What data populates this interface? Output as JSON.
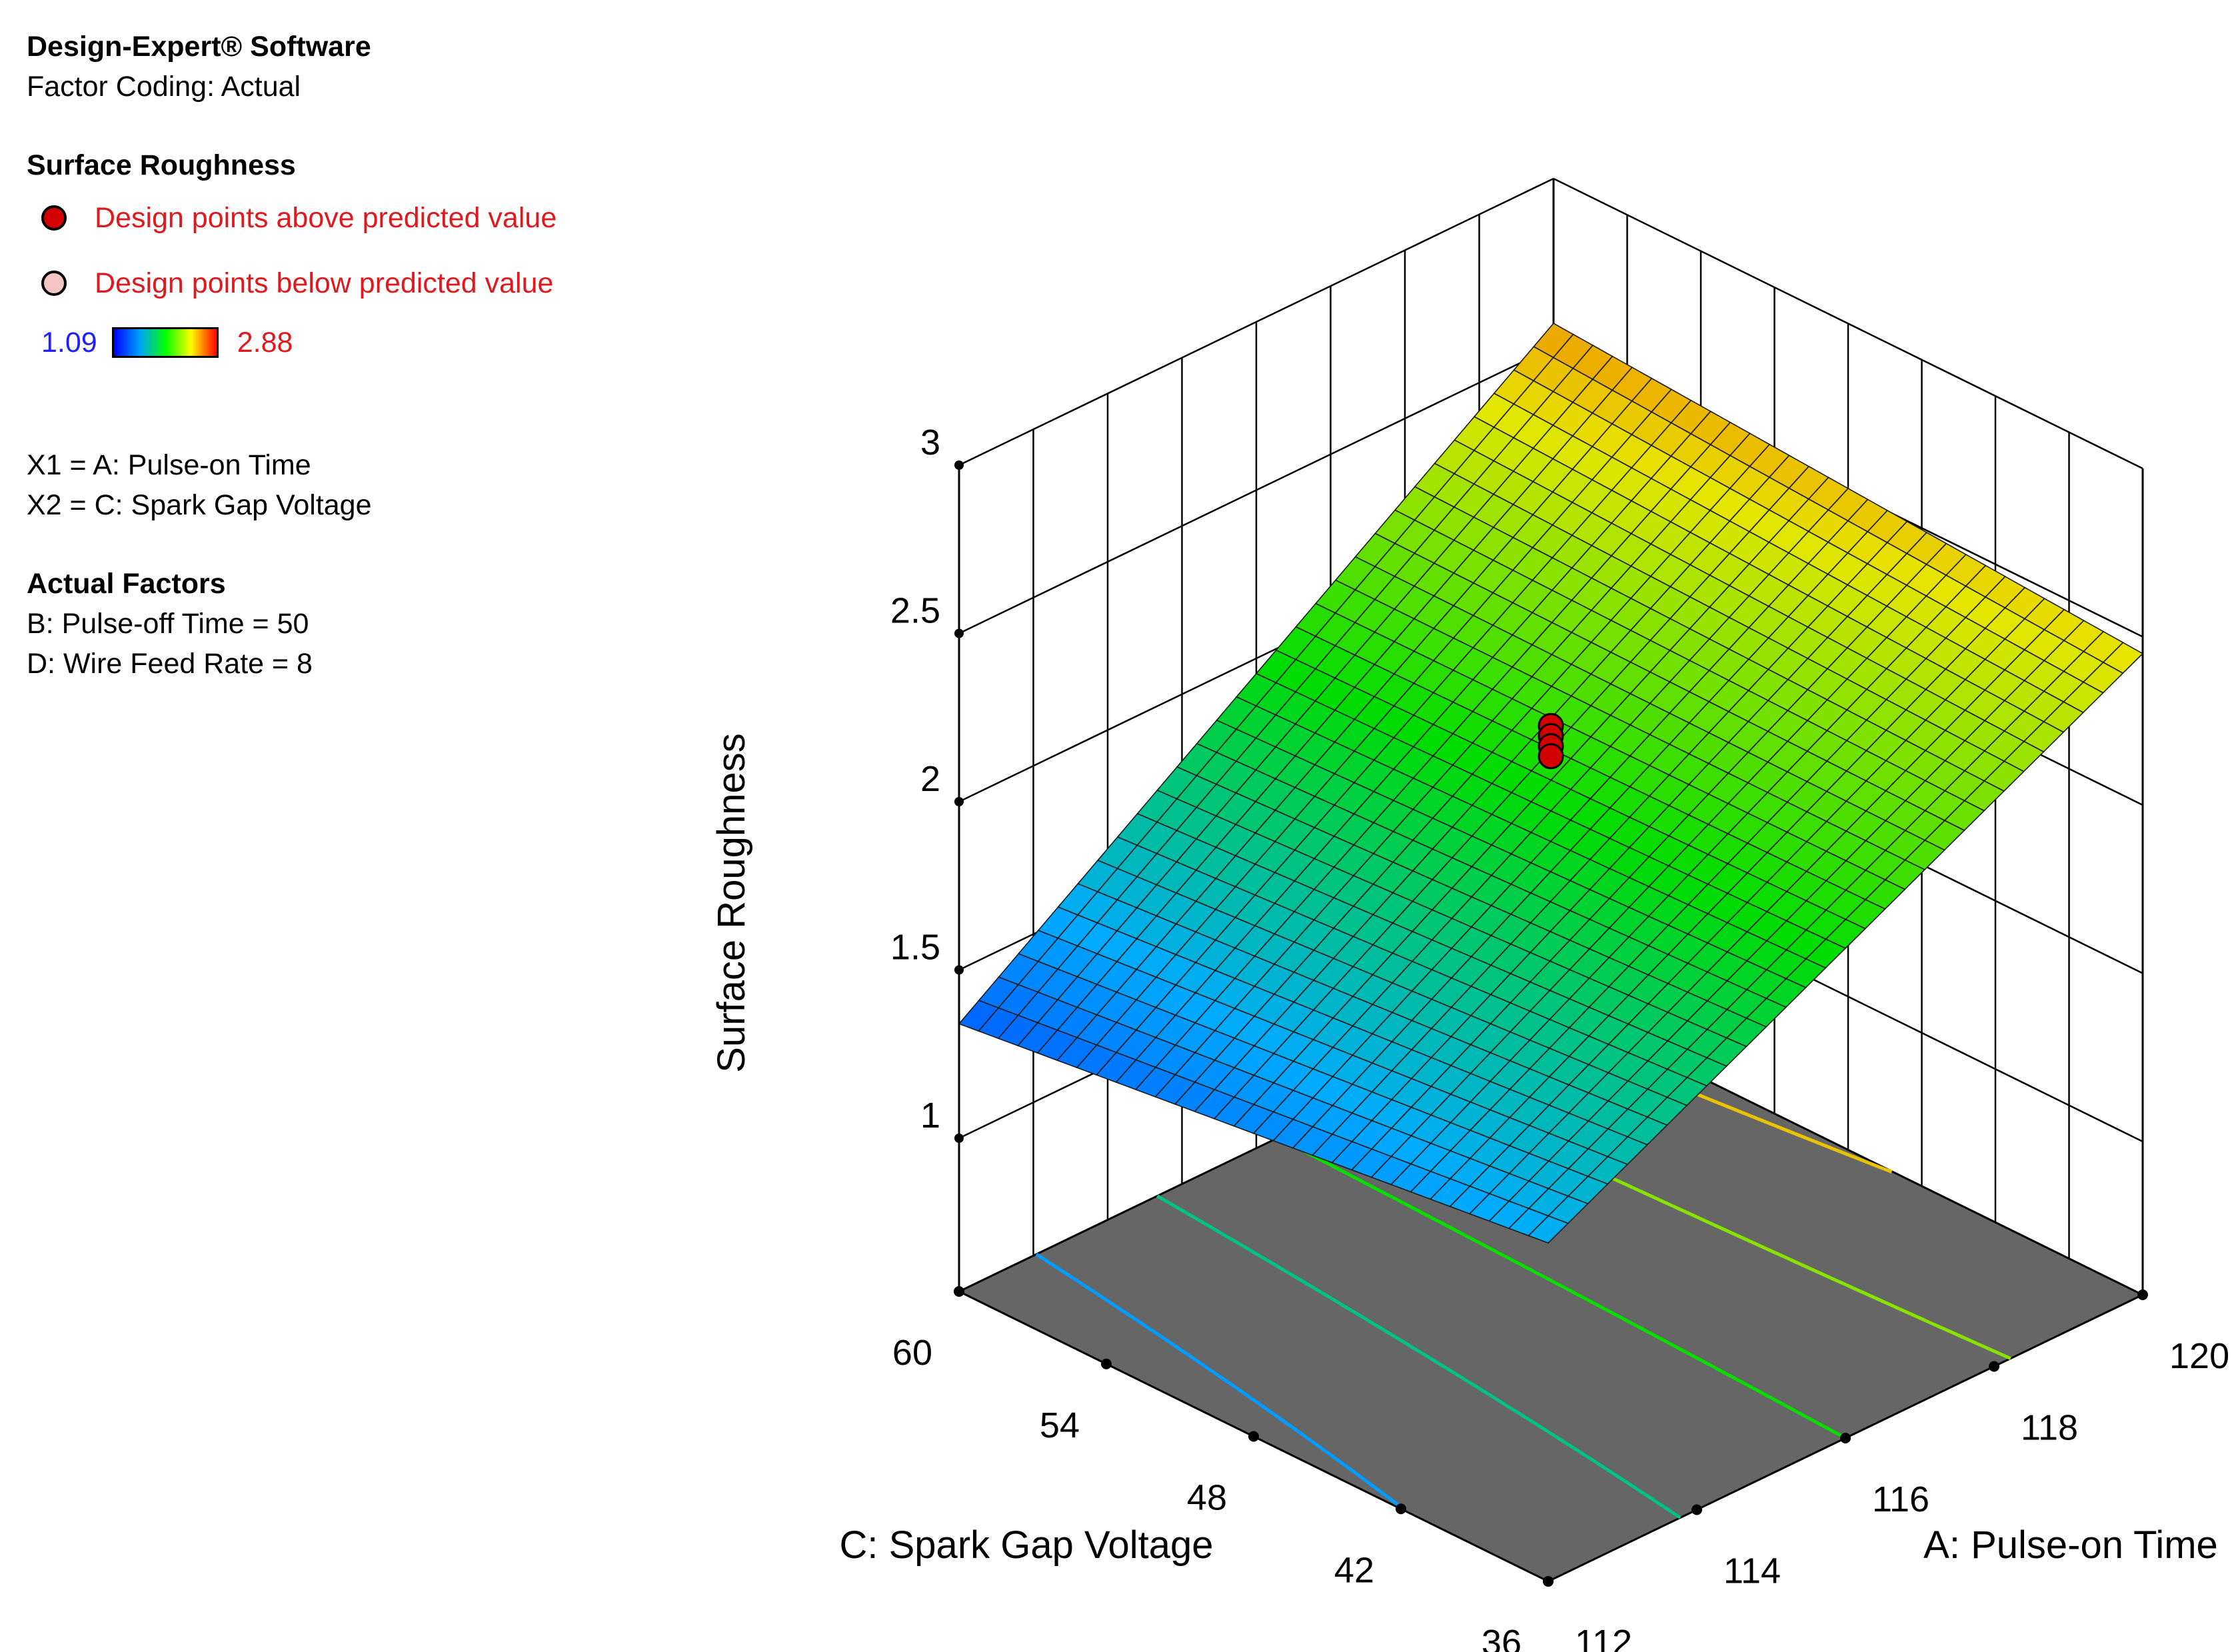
{
  "legend": {
    "software": "Design-Expert® Software",
    "coding": "Factor Coding: Actual",
    "response": "Surface Roughness",
    "above_label": "Design points above predicted value",
    "below_label": "Design points below predicted value",
    "above_color": "#d40000",
    "below_color": "#f7c4c4",
    "color_min": "1.09",
    "color_max": "2.88",
    "x1": "X1 = A: Pulse-on Time",
    "x2": "X2 = C: Spark Gap Voltage",
    "actual_title": "Actual Factors",
    "actual_b": "B: Pulse-off Time = 50",
    "actual_d": "D: Wire Feed Rate = 8"
  },
  "chart_data": {
    "type": "surface3d",
    "zlabel": "Surface Roughness",
    "xlabel": "A: Pulse-on Time",
    "ylabel": "C: Spark Gap Voltage",
    "x_range": [
      112,
      120
    ],
    "y_range": [
      36,
      60
    ],
    "z_range": [
      1,
      3
    ],
    "x_ticks": [
      "112",
      "114",
      "116",
      "118",
      "120"
    ],
    "x_tick_values": [
      112,
      114,
      116,
      118,
      120
    ],
    "y_ticks": [
      "36",
      "42",
      "48",
      "54",
      "60"
    ],
    "y_tick_values": [
      36,
      42,
      48,
      54,
      60
    ],
    "z_ticks": [
      "1",
      "1.5",
      "2",
      "2.5",
      "3"
    ],
    "z_tick_values": [
      1,
      1.5,
      2,
      2.5,
      3
    ],
    "surface_corners": [
      {
        "x": 112,
        "y": 36,
        "z": 1.55
      },
      {
        "x": 120,
        "y": 36,
        "z": 2.45
      },
      {
        "x": 112,
        "y": 60,
        "z": 1.34
      },
      {
        "x": 120,
        "y": 60,
        "z": 2.57
      }
    ],
    "color_scale": {
      "min": 1.09,
      "max": 2.88
    },
    "design_points": [
      {
        "x": 116,
        "y": 48,
        "z": 2.23,
        "position": "above"
      },
      {
        "x": 116,
        "y": 48,
        "z": 2.2,
        "position": "above"
      },
      {
        "x": 116,
        "y": 48,
        "z": 2.17,
        "position": "above"
      },
      {
        "x": 116,
        "y": 48,
        "z": 2.14,
        "position": "above"
      }
    ],
    "contour_levels": [
      1.5,
      1.75,
      2.0,
      2.25,
      2.5
    ],
    "grid": true
  }
}
